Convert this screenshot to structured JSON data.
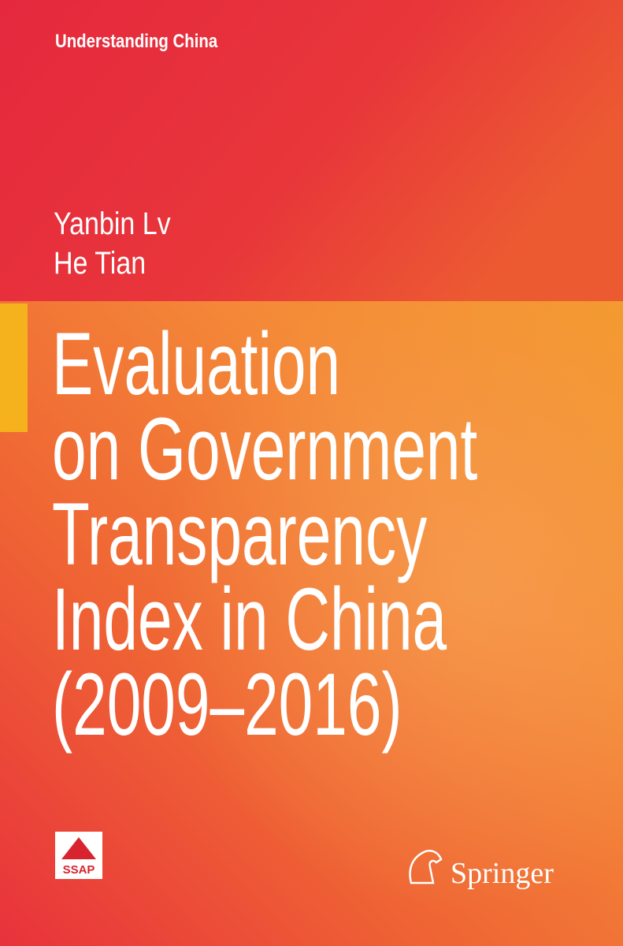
{
  "series": "Understanding China",
  "authors": [
    "Yanbin Lv",
    "He Tian"
  ],
  "title_lines": [
    "Evaluation",
    "on Government",
    "Transparency",
    "Index in China",
    "(2009–2016)"
  ],
  "publisher_logo": "SSAP",
  "publisher": "Springer"
}
